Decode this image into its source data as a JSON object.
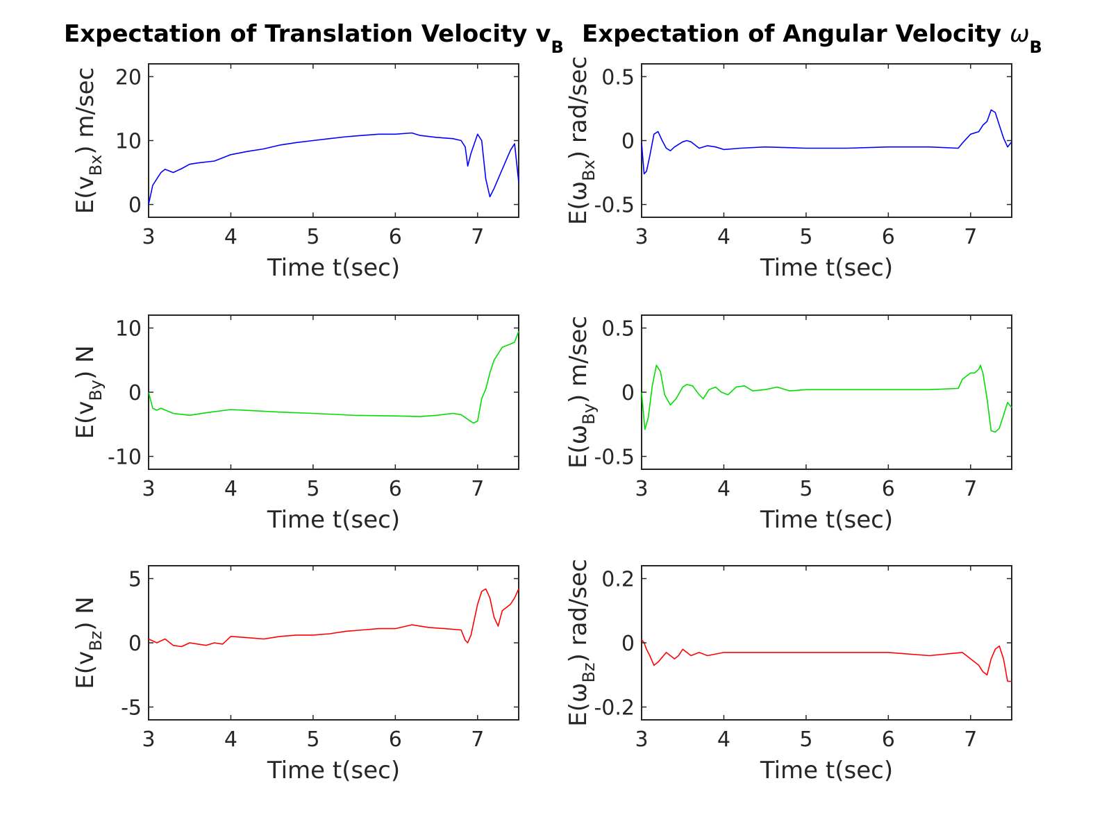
{
  "figure": {
    "titles": [
      {
        "text": "Expectation of Translation Velocity v",
        "sub": "B"
      },
      {
        "text": "Expectation of Angular Velocity ",
        "sym": "ω",
        "sub": "B"
      }
    ]
  },
  "chart_data": [
    {
      "type": "line",
      "id": "bx",
      "xlabel": "Time t(sec)",
      "xlim": [
        3,
        7.5
      ],
      "xticks": [
        3,
        4,
        5,
        6,
        7
      ],
      "ylabel": {
        "pre": "E(v",
        "sub": "Bx",
        "post": ") m/sec"
      },
      "ylim": [
        -2,
        22
      ],
      "yticks": [
        0,
        10,
        20
      ],
      "ytick_labels": [
        "0",
        "10",
        "20"
      ],
      "grid": false,
      "series": [
        {
          "color": "#0000ff",
          "x": [
            3.0,
            3.05,
            3.1,
            3.15,
            3.2,
            3.3,
            3.4,
            3.5,
            3.6,
            3.8,
            4.0,
            4.2,
            4.4,
            4.6,
            4.8,
            5.0,
            5.2,
            5.4,
            5.6,
            5.8,
            6.0,
            6.2,
            6.3,
            6.5,
            6.7,
            6.8,
            6.85,
            6.88,
            6.92,
            7.0,
            7.05,
            7.1,
            7.15,
            7.2,
            7.3,
            7.4,
            7.45,
            7.5
          ],
          "y": [
            0.0,
            3.0,
            4.0,
            5.0,
            5.5,
            5.0,
            5.6,
            6.3,
            6.5,
            6.8,
            7.8,
            8.3,
            8.7,
            9.3,
            9.7,
            10.0,
            10.3,
            10.6,
            10.8,
            11.0,
            11.0,
            11.2,
            10.8,
            10.5,
            10.3,
            10.0,
            9.0,
            6.0,
            8.0,
            11.0,
            10.0,
            4.0,
            1.2,
            2.5,
            5.5,
            8.5,
            9.5,
            3.5
          ]
        }
      ]
    },
    {
      "type": "line",
      "id": "wbx",
      "xlabel": "Time t(sec)",
      "xlim": [
        3,
        7.5
      ],
      "xticks": [
        3,
        4,
        5,
        6,
        7
      ],
      "ylabel": {
        "pre": "E(ω",
        "sub": "Bx",
        "post": ") rad/sec"
      },
      "ylim": [
        -0.6,
        0.6
      ],
      "yticks": [
        -0.5,
        0,
        0.5
      ],
      "ytick_labels": [
        "-0.5",
        "0",
        "0.5"
      ],
      "grid": false,
      "series": [
        {
          "color": "#0000ff",
          "x": [
            3.0,
            3.03,
            3.06,
            3.1,
            3.15,
            3.2,
            3.25,
            3.3,
            3.35,
            3.4,
            3.5,
            3.55,
            3.6,
            3.7,
            3.8,
            3.9,
            4.0,
            4.2,
            4.5,
            5.0,
            5.5,
            6.0,
            6.5,
            6.85,
            6.9,
            7.0,
            7.1,
            7.15,
            7.2,
            7.25,
            7.3,
            7.35,
            7.4,
            7.45,
            7.5
          ],
          "y": [
            -0.02,
            -0.26,
            -0.24,
            -0.12,
            0.05,
            0.07,
            0.0,
            -0.06,
            -0.08,
            -0.05,
            -0.01,
            0.0,
            -0.01,
            -0.06,
            -0.04,
            -0.05,
            -0.07,
            -0.06,
            -0.05,
            -0.06,
            -0.06,
            -0.05,
            -0.05,
            -0.06,
            -0.02,
            0.05,
            0.07,
            0.12,
            0.15,
            0.24,
            0.22,
            0.12,
            0.02,
            -0.05,
            -0.01
          ]
        }
      ]
    },
    {
      "type": "line",
      "id": "by",
      "xlabel": "Time t(sec)",
      "xlim": [
        3,
        7.5
      ],
      "xticks": [
        3,
        4,
        5,
        6,
        7
      ],
      "ylabel": {
        "pre": "E(v",
        "sub": "By",
        "post": ") N"
      },
      "ylim": [
        -12,
        12
      ],
      "yticks": [
        -10,
        0,
        10
      ],
      "ytick_labels": [
        "-10",
        "0",
        "10"
      ],
      "grid": false,
      "series": [
        {
          "color": "#00dd00",
          "x": [
            3.0,
            3.05,
            3.1,
            3.15,
            3.3,
            3.5,
            3.7,
            4.0,
            4.3,
            4.6,
            5.0,
            5.5,
            6.0,
            6.3,
            6.5,
            6.7,
            6.8,
            6.9,
            6.95,
            7.0,
            7.05,
            7.1,
            7.15,
            7.2,
            7.3,
            7.4,
            7.45,
            7.5
          ],
          "y": [
            0.0,
            -2.5,
            -2.8,
            -2.5,
            -3.3,
            -3.6,
            -3.2,
            -2.7,
            -2.9,
            -3.1,
            -3.3,
            -3.6,
            -3.7,
            -3.8,
            -3.6,
            -3.3,
            -3.5,
            -4.4,
            -4.8,
            -4.5,
            -1.0,
            0.5,
            3.0,
            5.0,
            7.0,
            7.5,
            7.8,
            9.5
          ]
        }
      ]
    },
    {
      "type": "line",
      "id": "wby",
      "xlabel": "Time t(sec)",
      "xlim": [
        3,
        7.5
      ],
      "xticks": [
        3,
        4,
        5,
        6,
        7
      ],
      "ylabel": {
        "pre": "E(ω",
        "sub": "By",
        "post": ") m/sec"
      },
      "ylim": [
        -0.6,
        0.6
      ],
      "yticks": [
        -0.5,
        0,
        0.5
      ],
      "ytick_labels": [
        "-0.5",
        "0",
        "0.5"
      ],
      "grid": false,
      "series": [
        {
          "color": "#00dd00",
          "x": [
            3.0,
            3.04,
            3.08,
            3.13,
            3.18,
            3.23,
            3.28,
            3.35,
            3.42,
            3.5,
            3.55,
            3.62,
            3.7,
            3.75,
            3.82,
            3.9,
            3.97,
            4.05,
            4.15,
            4.25,
            4.35,
            4.5,
            4.65,
            4.8,
            5.0,
            5.5,
            6.0,
            6.5,
            6.85,
            6.9,
            7.0,
            7.05,
            7.1,
            7.12,
            7.15,
            7.2,
            7.25,
            7.3,
            7.35,
            7.4,
            7.45,
            7.5
          ],
          "y": [
            0.0,
            -0.29,
            -0.2,
            0.05,
            0.21,
            0.16,
            -0.02,
            -0.1,
            -0.05,
            0.04,
            0.06,
            0.05,
            -0.02,
            -0.05,
            0.02,
            0.04,
            0.0,
            -0.02,
            0.04,
            0.05,
            0.01,
            0.02,
            0.04,
            0.01,
            0.02,
            0.02,
            0.02,
            0.02,
            0.03,
            0.1,
            0.15,
            0.15,
            0.18,
            0.21,
            0.15,
            -0.05,
            -0.3,
            -0.31,
            -0.28,
            -0.18,
            -0.08,
            -0.12
          ]
        }
      ]
    },
    {
      "type": "line",
      "id": "bz",
      "xlabel": "Time t(sec)",
      "xlim": [
        3,
        7.5
      ],
      "xticks": [
        3,
        4,
        5,
        6,
        7
      ],
      "ylabel": {
        "pre": "E(v",
        "sub": "Bz",
        "post": ") N"
      },
      "ylim": [
        -6,
        6
      ],
      "yticks": [
        -5,
        0,
        5
      ],
      "ytick_labels": [
        "-5",
        "0",
        "5"
      ],
      "grid": false,
      "series": [
        {
          "color": "#ff0000",
          "x": [
            3.0,
            3.1,
            3.2,
            3.3,
            3.4,
            3.5,
            3.6,
            3.7,
            3.8,
            3.9,
            4.0,
            4.2,
            4.4,
            4.6,
            4.8,
            5.0,
            5.2,
            5.4,
            5.6,
            5.8,
            6.0,
            6.2,
            6.4,
            6.6,
            6.8,
            6.85,
            6.88,
            6.92,
            7.0,
            7.05,
            7.1,
            7.15,
            7.2,
            7.25,
            7.3,
            7.4,
            7.45,
            7.5
          ],
          "y": [
            0.3,
            0.0,
            0.3,
            -0.2,
            -0.3,
            0.0,
            -0.1,
            -0.2,
            0.0,
            -0.1,
            0.5,
            0.4,
            0.3,
            0.5,
            0.6,
            0.6,
            0.7,
            0.9,
            1.0,
            1.1,
            1.1,
            1.4,
            1.2,
            1.1,
            1.0,
            0.2,
            0.0,
            0.6,
            3.0,
            4.0,
            4.2,
            3.5,
            2.0,
            1.3,
            2.5,
            3.0,
            3.5,
            4.2
          ]
        }
      ]
    },
    {
      "type": "line",
      "id": "wbz",
      "xlabel": "Time t(sec)",
      "xlim": [
        3,
        7.5
      ],
      "xticks": [
        3,
        4,
        5,
        6,
        7
      ],
      "ylabel": {
        "pre": "E(ω",
        "sub": "Bz",
        "post": ") rad/sec"
      },
      "ylim": [
        -0.24,
        0.24
      ],
      "yticks": [
        -0.2,
        0,
        0.2
      ],
      "ytick_labels": [
        "-0.2",
        "0",
        "0.2"
      ],
      "grid": false,
      "series": [
        {
          "color": "#ff0000",
          "x": [
            3.0,
            3.03,
            3.06,
            3.1,
            3.15,
            3.2,
            3.3,
            3.4,
            3.45,
            3.5,
            3.6,
            3.7,
            3.8,
            4.0,
            4.5,
            5.0,
            5.5,
            6.0,
            6.5,
            6.9,
            7.0,
            7.1,
            7.15,
            7.2,
            7.25,
            7.3,
            7.35,
            7.4,
            7.45,
            7.5
          ],
          "y": [
            0.01,
            0.0,
            -0.02,
            -0.04,
            -0.07,
            -0.06,
            -0.03,
            -0.05,
            -0.04,
            -0.02,
            -0.04,
            -0.03,
            -0.04,
            -0.03,
            -0.03,
            -0.03,
            -0.03,
            -0.03,
            -0.04,
            -0.03,
            -0.05,
            -0.07,
            -0.09,
            -0.1,
            -0.05,
            -0.02,
            -0.01,
            -0.05,
            -0.12,
            -0.12
          ]
        }
      ]
    }
  ]
}
